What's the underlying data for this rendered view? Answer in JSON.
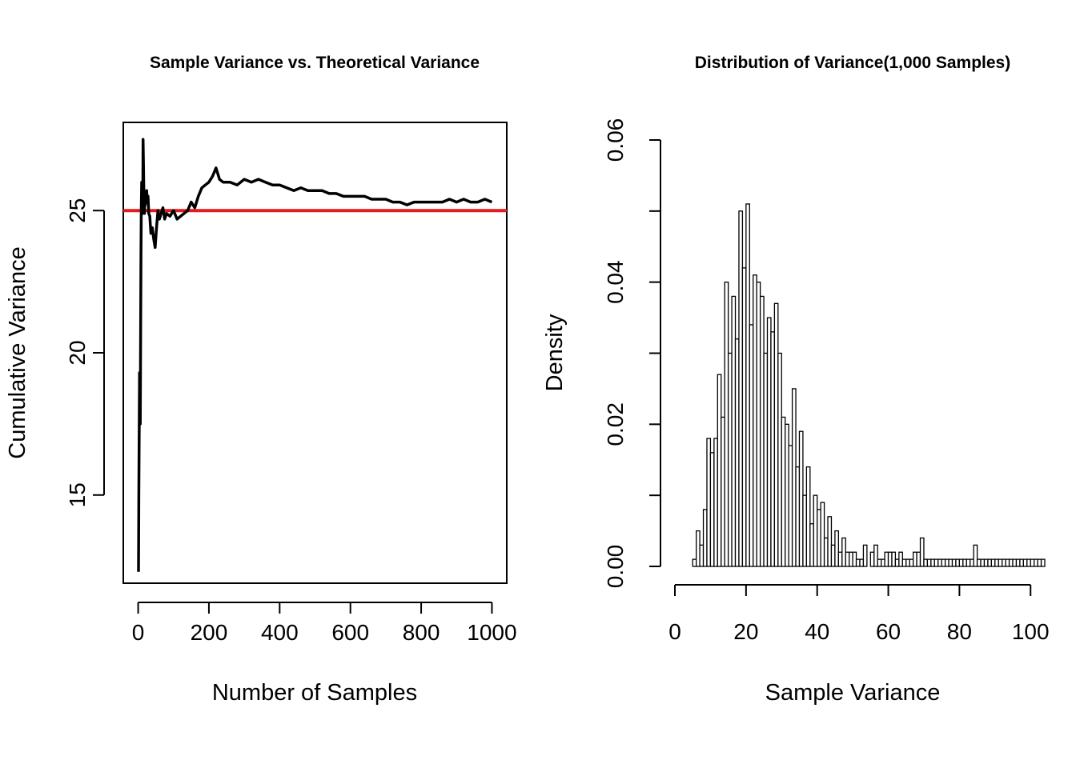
{
  "chart_data": [
    {
      "type": "line",
      "title": "Sample Variance vs. Theoretical Variance",
      "xlabel": "Number of Samples",
      "ylabel": "Cumulative Variance",
      "xlim": [
        -42,
        1042
      ],
      "ylim": [
        11.9,
        28.1
      ],
      "xticks": [
        "0",
        "200",
        "400",
        "600",
        "800",
        "1000"
      ],
      "yticks": [
        "15",
        "20",
        "25"
      ],
      "grid": false,
      "legend": "none",
      "reference_line": {
        "y": 25,
        "color": "#e41a1c"
      },
      "series": [
        {
          "color": "#000000",
          "x": [
            1,
            2,
            3,
            4,
            5,
            6,
            7,
            8,
            9,
            10,
            11,
            12,
            13,
            14,
            15,
            16,
            17,
            18,
            19,
            20,
            22,
            24,
            26,
            28,
            30,
            33,
            36,
            40,
            44,
            48,
            52,
            56,
            60,
            65,
            70,
            75,
            80,
            90,
            100,
            110,
            120,
            130,
            140,
            150,
            160,
            170,
            180,
            190,
            200,
            210,
            220,
            230,
            240,
            260,
            280,
            300,
            320,
            340,
            360,
            380,
            400,
            420,
            440,
            460,
            480,
            500,
            520,
            540,
            560,
            580,
            600,
            620,
            640,
            660,
            680,
            700,
            720,
            740,
            760,
            780,
            800,
            820,
            840,
            860,
            880,
            900,
            920,
            940,
            960,
            980,
            1000
          ],
          "values": [
            12.3,
            15.0,
            17.4,
            19.3,
            18.2,
            17.5,
            21.0,
            23.5,
            25.1,
            26.0,
            25.4,
            25.9,
            24.9,
            27.5,
            26.6,
            25.8,
            25.0,
            24.9,
            25.6,
            25.2,
            25.4,
            25.7,
            25.3,
            25.5,
            24.9,
            24.8,
            24.2,
            24.4,
            24.0,
            23.7,
            24.4,
            25.0,
            24.7,
            24.9,
            25.1,
            24.7,
            24.9,
            24.8,
            25.0,
            24.7,
            24.8,
            24.9,
            25.0,
            25.3,
            25.1,
            25.5,
            25.8,
            25.9,
            26.0,
            26.2,
            26.5,
            26.1,
            26.0,
            26.0,
            25.9,
            26.1,
            26.0,
            26.1,
            26.0,
            25.9,
            25.9,
            25.8,
            25.7,
            25.8,
            25.7,
            25.7,
            25.7,
            25.6,
            25.6,
            25.5,
            25.5,
            25.5,
            25.5,
            25.4,
            25.4,
            25.4,
            25.3,
            25.3,
            25.2,
            25.3,
            25.3,
            25.3,
            25.3,
            25.3,
            25.4,
            25.3,
            25.4,
            25.3,
            25.3,
            25.4,
            25.3
          ]
        }
      ]
    },
    {
      "type": "bar",
      "subtype": "histogram",
      "title": "Distribution of Variance(1,000 Samples)",
      "xlabel": "Sample Variance",
      "ylabel": "Density",
      "xlim": [
        0,
        104
      ],
      "ylim": [
        0,
        0.06
      ],
      "xticks": [
        "0",
        "20",
        "40",
        "60",
        "80",
        "100"
      ],
      "yticks": [
        "0.00",
        "0.02",
        "0.04",
        "0.06"
      ],
      "bin_width": 1,
      "bin_start": 5,
      "values": [
        0.001,
        0.005,
        0.003,
        0.008,
        0.018,
        0.016,
        0.018,
        0.027,
        0.021,
        0.04,
        0.03,
        0.038,
        0.032,
        0.05,
        0.042,
        0.051,
        0.034,
        0.041,
        0.04,
        0.038,
        0.03,
        0.035,
        0.033,
        0.037,
        0.03,
        0.021,
        0.02,
        0.017,
        0.025,
        0.014,
        0.019,
        0.01,
        0.014,
        0.006,
        0.01,
        0.008,
        0.009,
        0.004,
        0.007,
        0.003,
        0.005,
        0.002,
        0.004,
        0.002,
        0.002,
        0.002,
        0.001,
        0.001,
        0.003,
        0,
        0.002,
        0.003,
        0.001,
        0.001,
        0.002,
        0.002,
        0.002,
        0.001,
        0.002,
        0.001,
        0.001,
        0.001,
        0.002,
        0.002,
        0.004,
        0.001,
        0.001,
        0.001,
        0.001,
        0.001,
        0.001,
        0.001,
        0.001,
        0.001,
        0.001,
        0.001,
        0.001,
        0.001,
        0.001,
        0.003,
        0.001,
        0.001,
        0.001,
        0.001,
        0.001,
        0.001,
        0.001,
        0.001,
        0.001,
        0.001,
        0.001,
        0.001,
        0.001,
        0.001,
        0.001,
        0.001,
        0.001,
        0.001,
        0.001
      ]
    }
  ]
}
